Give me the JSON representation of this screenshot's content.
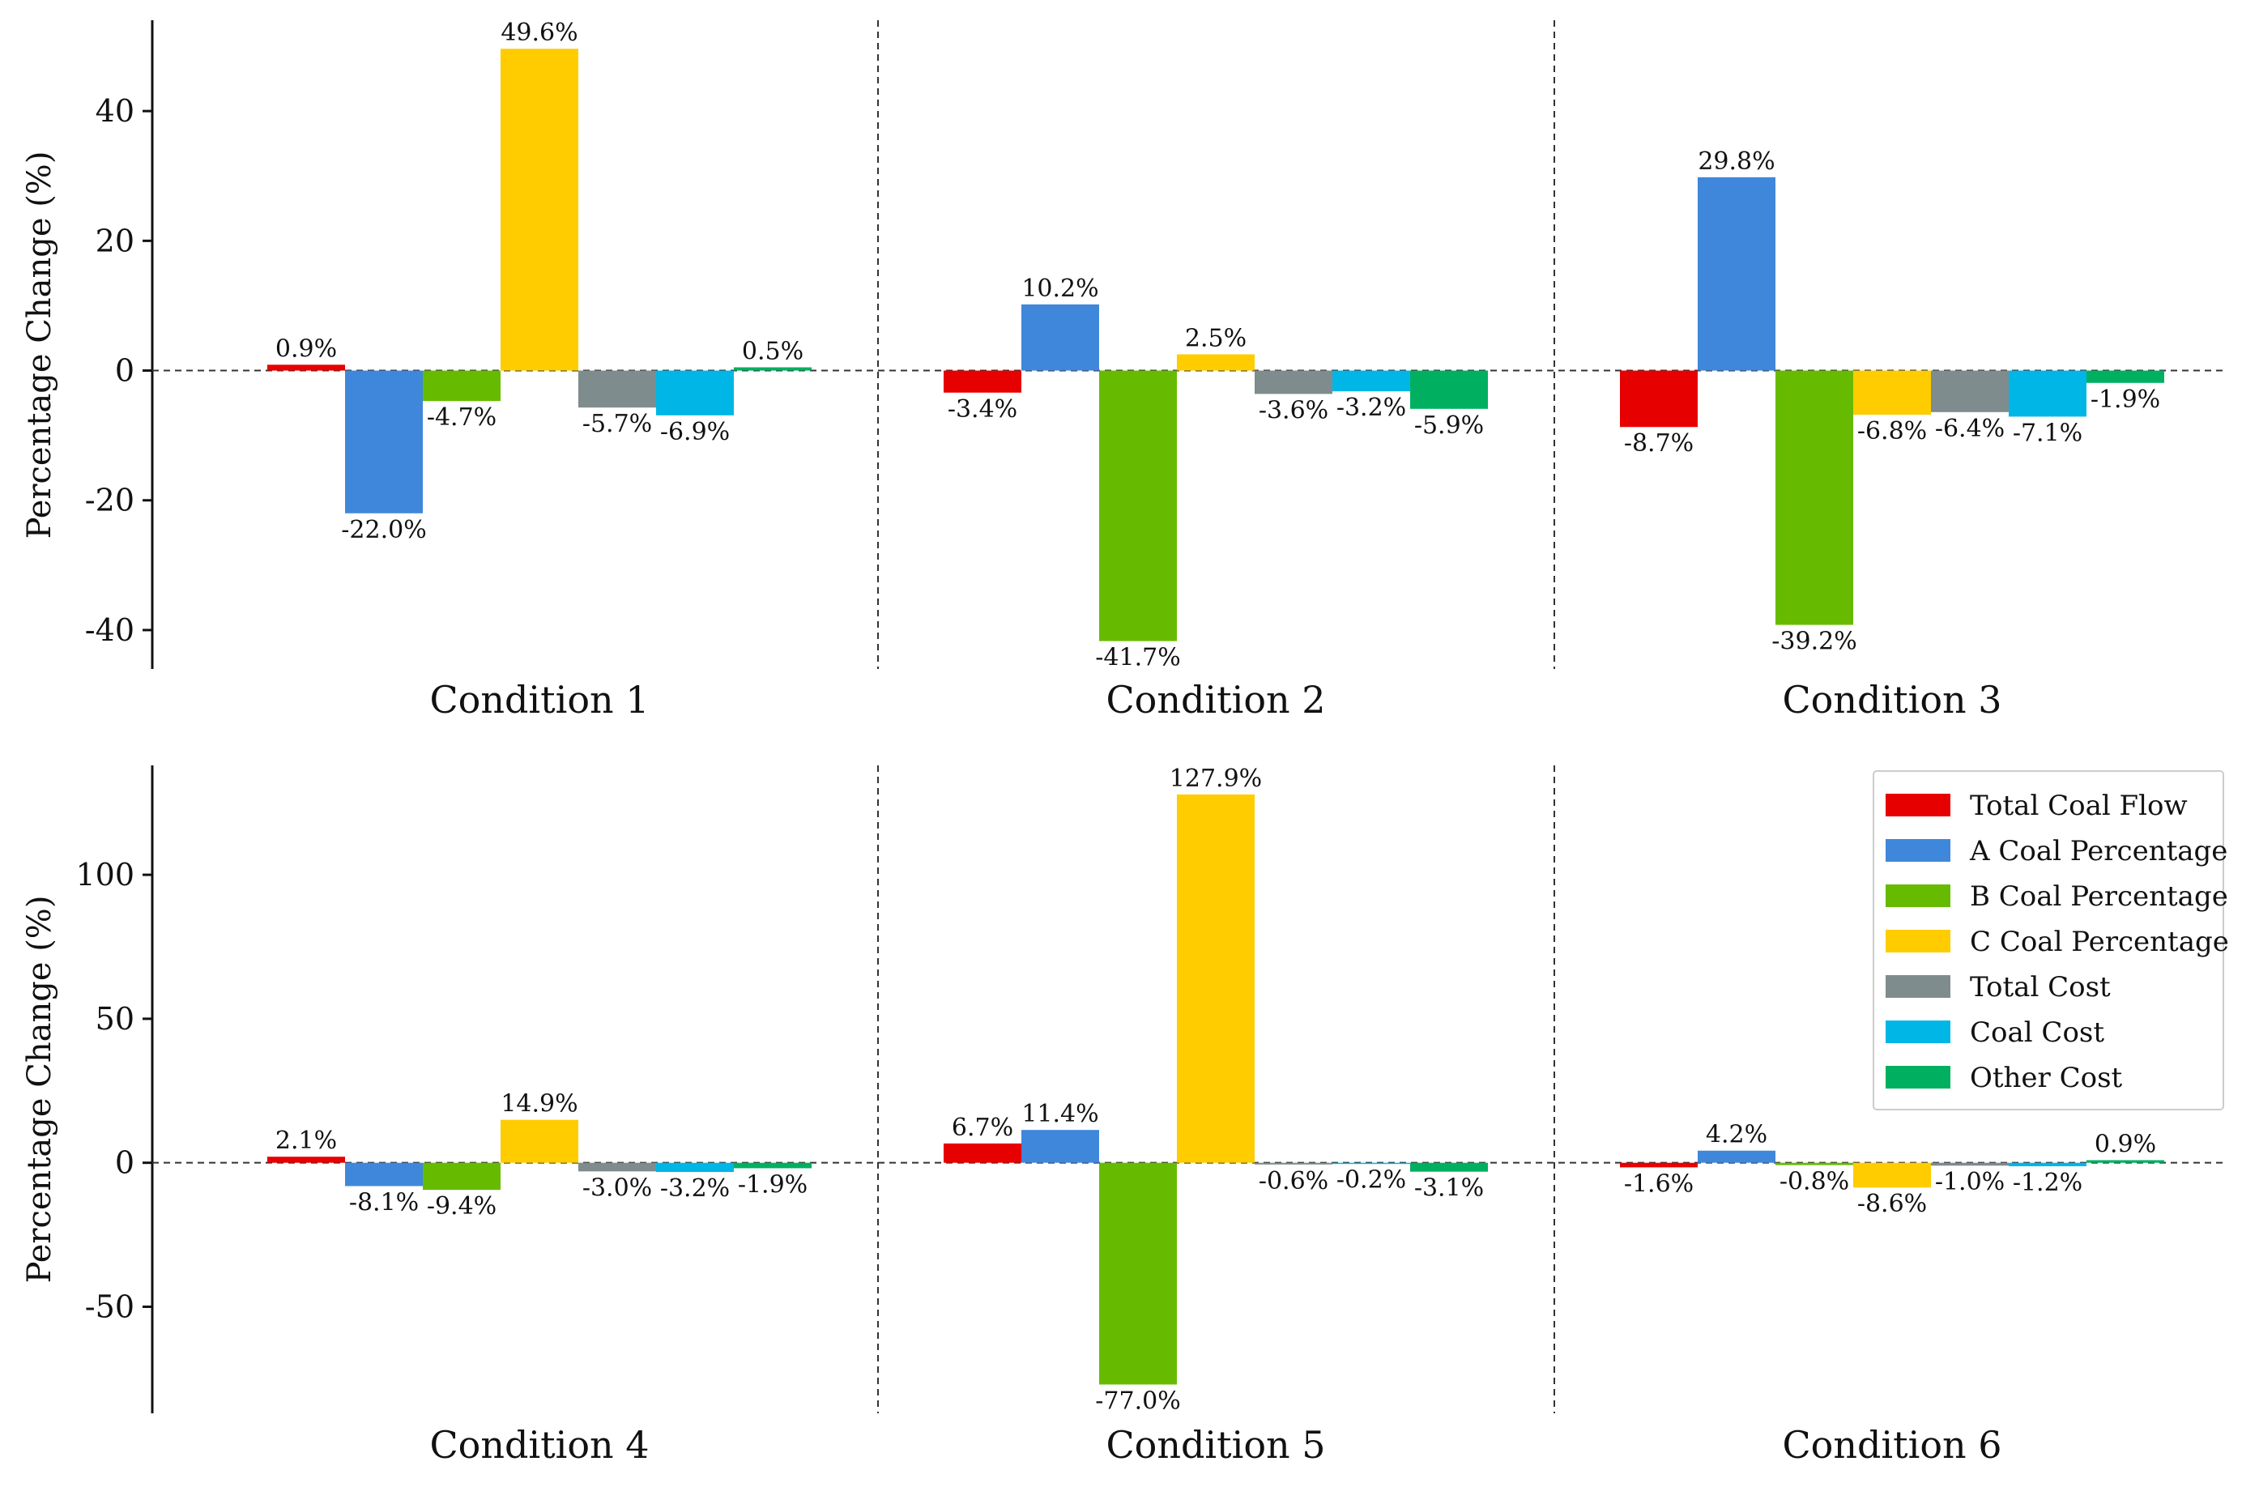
{
  "chart_data": {
    "type": "bar",
    "ylabel": "Percentage Change (%)",
    "series_names": [
      "Total Coal Flow",
      "A Coal Percentage",
      "B Coal Percentage",
      "C Coal Percentage",
      "Total Cost",
      "Coal Cost",
      "Other Cost"
    ],
    "colors": [
      "#E60000",
      "#3F87DB",
      "#66BB00",
      "#FFCC00",
      "#7F8C8D",
      "#00B6E6",
      "#00B060"
    ],
    "legend_position": "upper-right of bottom row",
    "rows": [
      {
        "ylim": [
          -46,
          54
        ],
        "yticks": [
          -40,
          -20,
          0,
          20,
          40
        ],
        "groups": [
          {
            "name": "Condition 1",
            "values": [
              0.9,
              -22.0,
              -4.7,
              49.6,
              -5.7,
              -6.9,
              0.5
            ],
            "labels": [
              "0.9%",
              "-22.0%",
              "-4.7%",
              "49.6%",
              "-5.7%",
              "-6.9%",
              "0.5%"
            ]
          },
          {
            "name": "Condition 2",
            "values": [
              -3.4,
              10.2,
              -41.7,
              2.5,
              -3.6,
              -3.2,
              -5.9
            ],
            "labels": [
              "-3.4%",
              "10.2%",
              "-41.7%",
              "2.5%",
              "-3.6%",
              "-3.2%",
              "-5.9%"
            ]
          },
          {
            "name": "Condition 3",
            "values": [
              -8.7,
              29.8,
              -39.2,
              -6.8,
              -6.4,
              -7.1,
              -1.9
            ],
            "labels": [
              "-8.7%",
              "29.8%",
              "-39.2%",
              "-6.8%",
              "-6.4%",
              "-7.1%",
              "-1.9%"
            ]
          }
        ]
      },
      {
        "ylim": [
          -87,
          138
        ],
        "yticks": [
          -50,
          0,
          50,
          100
        ],
        "groups": [
          {
            "name": "Condition 4",
            "values": [
              2.1,
              -8.1,
              -9.4,
              14.9,
              -3.0,
              -3.2,
              -1.9
            ],
            "labels": [
              "2.1%",
              "-8.1%",
              "-9.4%",
              "14.9%",
              "-3.0%",
              "-3.2%",
              "-1.9%"
            ]
          },
          {
            "name": "Condition 5",
            "values": [
              6.7,
              11.4,
              -77.0,
              127.9,
              -0.6,
              -0.2,
              -3.1
            ],
            "labels": [
              "6.7%",
              "11.4%",
              "-77.0%",
              "127.9%",
              "-0.6%",
              "-0.2%",
              "-3.1%"
            ]
          },
          {
            "name": "Condition 6",
            "values": [
              -1.6,
              4.2,
              -0.8,
              -8.6,
              -1.0,
              -1.2,
              0.9
            ],
            "labels": [
              "-1.6%",
              "4.2%",
              "-0.8%",
              "-8.6%",
              "-1.0%",
              "-1.2%",
              "0.9%"
            ]
          }
        ]
      }
    ]
  }
}
